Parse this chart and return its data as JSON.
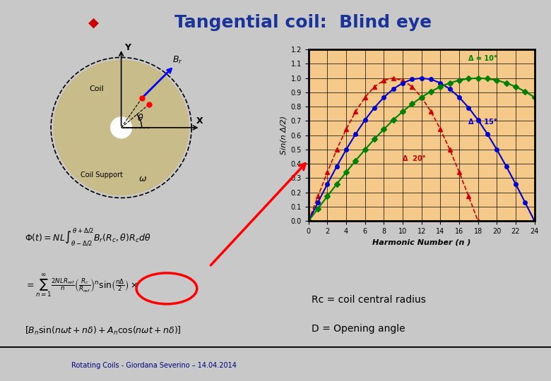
{
  "title": "Tangential coil:  Blind eye",
  "title_color": "#1a3399",
  "title_fontsize": 18,
  "bg_color": "#c8c8c8",
  "footer_text": "Rotating Coils - Giordana Severino – 14.04.2014",
  "rc_label": "Rc = coil central radius",
  "d_label": "D = Opening angle",
  "plot_bg": "#f4c98a",
  "plot_border_color": "#add8e6",
  "xlabel": "Harmonic Number (n )",
  "ylabel": "Sin(n Δ/2)",
  "xlim": [
    0,
    24
  ],
  "ylim": [
    0.0,
    1.2
  ],
  "xticks": [
    0,
    2,
    4,
    6,
    8,
    10,
    12,
    14,
    16,
    18,
    20,
    22,
    24
  ],
  "yticks": [
    0.0,
    0.1,
    0.2,
    0.3,
    0.4,
    0.5,
    0.6,
    0.7,
    0.8,
    0.9,
    1.0,
    1.1,
    1.2
  ],
  "delta10_label": "Δ = 10°",
  "delta15_label": "Δ = 15°",
  "delta20_label": "Δ  20°",
  "delta10_color": "#008000",
  "delta15_color": "#0000cc",
  "delta20_color": "#cc0000",
  "diamond_color": "#cc0000",
  "formula_box_color": "#d0e8f8",
  "coil_diagram_bg": "#f5f5e8",
  "coil_color": "#c8b870"
}
